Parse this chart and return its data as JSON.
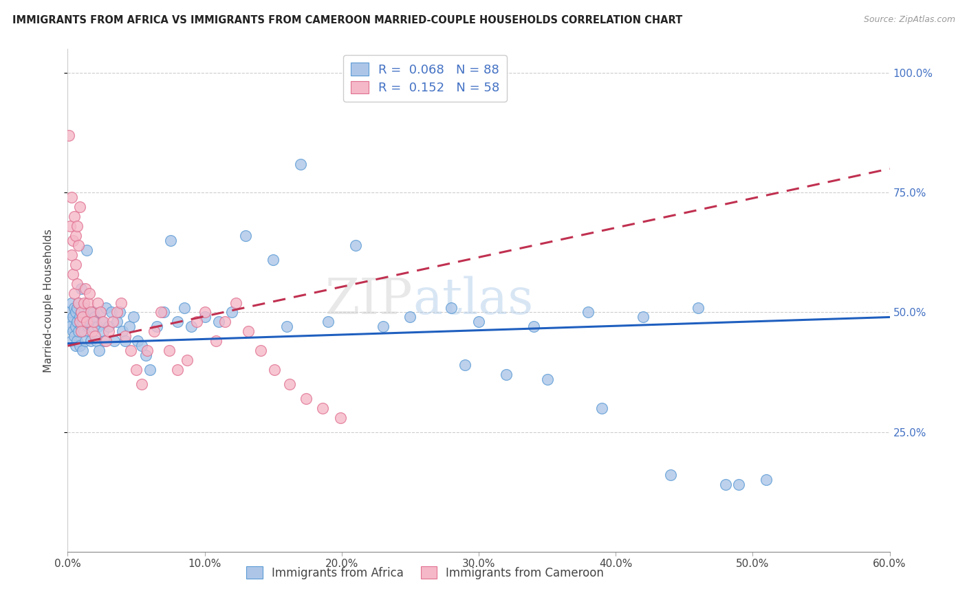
{
  "title": "IMMIGRANTS FROM AFRICA VS IMMIGRANTS FROM CAMEROON MARRIED-COUPLE HOUSEHOLDS CORRELATION CHART",
  "source": "Source: ZipAtlas.com",
  "ylabel": "Married-couple Households",
  "xlim": [
    0.0,
    0.6
  ],
  "ylim": [
    0.0,
    1.05
  ],
  "xtick_labels": [
    "0.0%",
    "10.0%",
    "20.0%",
    "30.0%",
    "40.0%",
    "50.0%",
    "60.0%"
  ],
  "xtick_values": [
    0.0,
    0.1,
    0.2,
    0.3,
    0.4,
    0.5,
    0.6
  ],
  "ytick_labels": [
    "25.0%",
    "50.0%",
    "75.0%",
    "100.0%"
  ],
  "ytick_values": [
    0.25,
    0.5,
    0.75,
    1.0
  ],
  "africa_color": "#adc6e8",
  "cameroon_color": "#f5b8c8",
  "africa_edge": "#5b9bd5",
  "cameroon_edge": "#e07090",
  "trend_africa_color": "#1f5fbf",
  "trend_cameroon_color": "#c03050",
  "watermark": "ZIPatlas",
  "africa_R": 0.068,
  "africa_N": 88,
  "cameroon_R": 0.152,
  "cameroon_N": 58,
  "africa_trend_x0": 0.0,
  "africa_trend_y0": 0.435,
  "africa_trend_x1": 0.6,
  "africa_trend_y1": 0.49,
  "cameroon_trend_x0": 0.0,
  "cameroon_trend_y0": 0.43,
  "cameroon_trend_x1": 0.6,
  "cameroon_trend_y1": 0.8,
  "africa_x": [
    0.001,
    0.002,
    0.002,
    0.003,
    0.003,
    0.004,
    0.004,
    0.005,
    0.005,
    0.006,
    0.006,
    0.006,
    0.007,
    0.007,
    0.007,
    0.008,
    0.008,
    0.009,
    0.009,
    0.01,
    0.01,
    0.01,
    0.011,
    0.011,
    0.012,
    0.012,
    0.013,
    0.013,
    0.014,
    0.015,
    0.015,
    0.016,
    0.017,
    0.018,
    0.019,
    0.02,
    0.021,
    0.022,
    0.023,
    0.024,
    0.025,
    0.026,
    0.027,
    0.028,
    0.03,
    0.032,
    0.034,
    0.036,
    0.038,
    0.04,
    0.042,
    0.045,
    0.048,
    0.051,
    0.054,
    0.057,
    0.06,
    0.065,
    0.07,
    0.075,
    0.08,
    0.085,
    0.09,
    0.1,
    0.11,
    0.12,
    0.13,
    0.15,
    0.16,
    0.17,
    0.19,
    0.21,
    0.23,
    0.25,
    0.28,
    0.3,
    0.34,
    0.38,
    0.42,
    0.46,
    0.49,
    0.51,
    0.48,
    0.44,
    0.39,
    0.35,
    0.32,
    0.29
  ],
  "africa_y": [
    0.48,
    0.5,
    0.47,
    0.52,
    0.44,
    0.46,
    0.49,
    0.51,
    0.45,
    0.43,
    0.5,
    0.47,
    0.44,
    0.51,
    0.48,
    0.46,
    0.52,
    0.49,
    0.43,
    0.47,
    0.55,
    0.5,
    0.48,
    0.42,
    0.51,
    0.46,
    0.49,
    0.44,
    0.63,
    0.5,
    0.47,
    0.48,
    0.44,
    0.47,
    0.5,
    0.49,
    0.44,
    0.47,
    0.42,
    0.5,
    0.48,
    0.46,
    0.44,
    0.51,
    0.47,
    0.5,
    0.44,
    0.48,
    0.5,
    0.46,
    0.44,
    0.47,
    0.49,
    0.44,
    0.43,
    0.41,
    0.38,
    0.47,
    0.5,
    0.65,
    0.48,
    0.51,
    0.47,
    0.49,
    0.48,
    0.5,
    0.66,
    0.61,
    0.47,
    0.81,
    0.48,
    0.64,
    0.47,
    0.49,
    0.51,
    0.48,
    0.47,
    0.5,
    0.49,
    0.51,
    0.14,
    0.15,
    0.14,
    0.16,
    0.3,
    0.36,
    0.37,
    0.39
  ],
  "cameroon_x": [
    0.001,
    0.002,
    0.003,
    0.003,
    0.004,
    0.004,
    0.005,
    0.005,
    0.006,
    0.006,
    0.007,
    0.007,
    0.008,
    0.008,
    0.009,
    0.009,
    0.01,
    0.01,
    0.011,
    0.012,
    0.013,
    0.014,
    0.015,
    0.016,
    0.017,
    0.018,
    0.019,
    0.02,
    0.022,
    0.024,
    0.026,
    0.028,
    0.03,
    0.033,
    0.036,
    0.039,
    0.042,
    0.046,
    0.05,
    0.054,
    0.058,
    0.063,
    0.068,
    0.074,
    0.08,
    0.087,
    0.094,
    0.1,
    0.108,
    0.115,
    0.123,
    0.132,
    0.141,
    0.151,
    0.162,
    0.174,
    0.186,
    0.199
  ],
  "cameroon_y": [
    0.87,
    0.68,
    0.62,
    0.74,
    0.65,
    0.58,
    0.54,
    0.7,
    0.6,
    0.66,
    0.56,
    0.68,
    0.52,
    0.64,
    0.48,
    0.72,
    0.46,
    0.5,
    0.49,
    0.52,
    0.55,
    0.48,
    0.52,
    0.54,
    0.5,
    0.46,
    0.48,
    0.45,
    0.52,
    0.5,
    0.48,
    0.44,
    0.46,
    0.48,
    0.5,
    0.52,
    0.45,
    0.42,
    0.38,
    0.35,
    0.42,
    0.46,
    0.5,
    0.42,
    0.38,
    0.4,
    0.48,
    0.5,
    0.44,
    0.48,
    0.52,
    0.46,
    0.42,
    0.38,
    0.35,
    0.32,
    0.3,
    0.28
  ]
}
